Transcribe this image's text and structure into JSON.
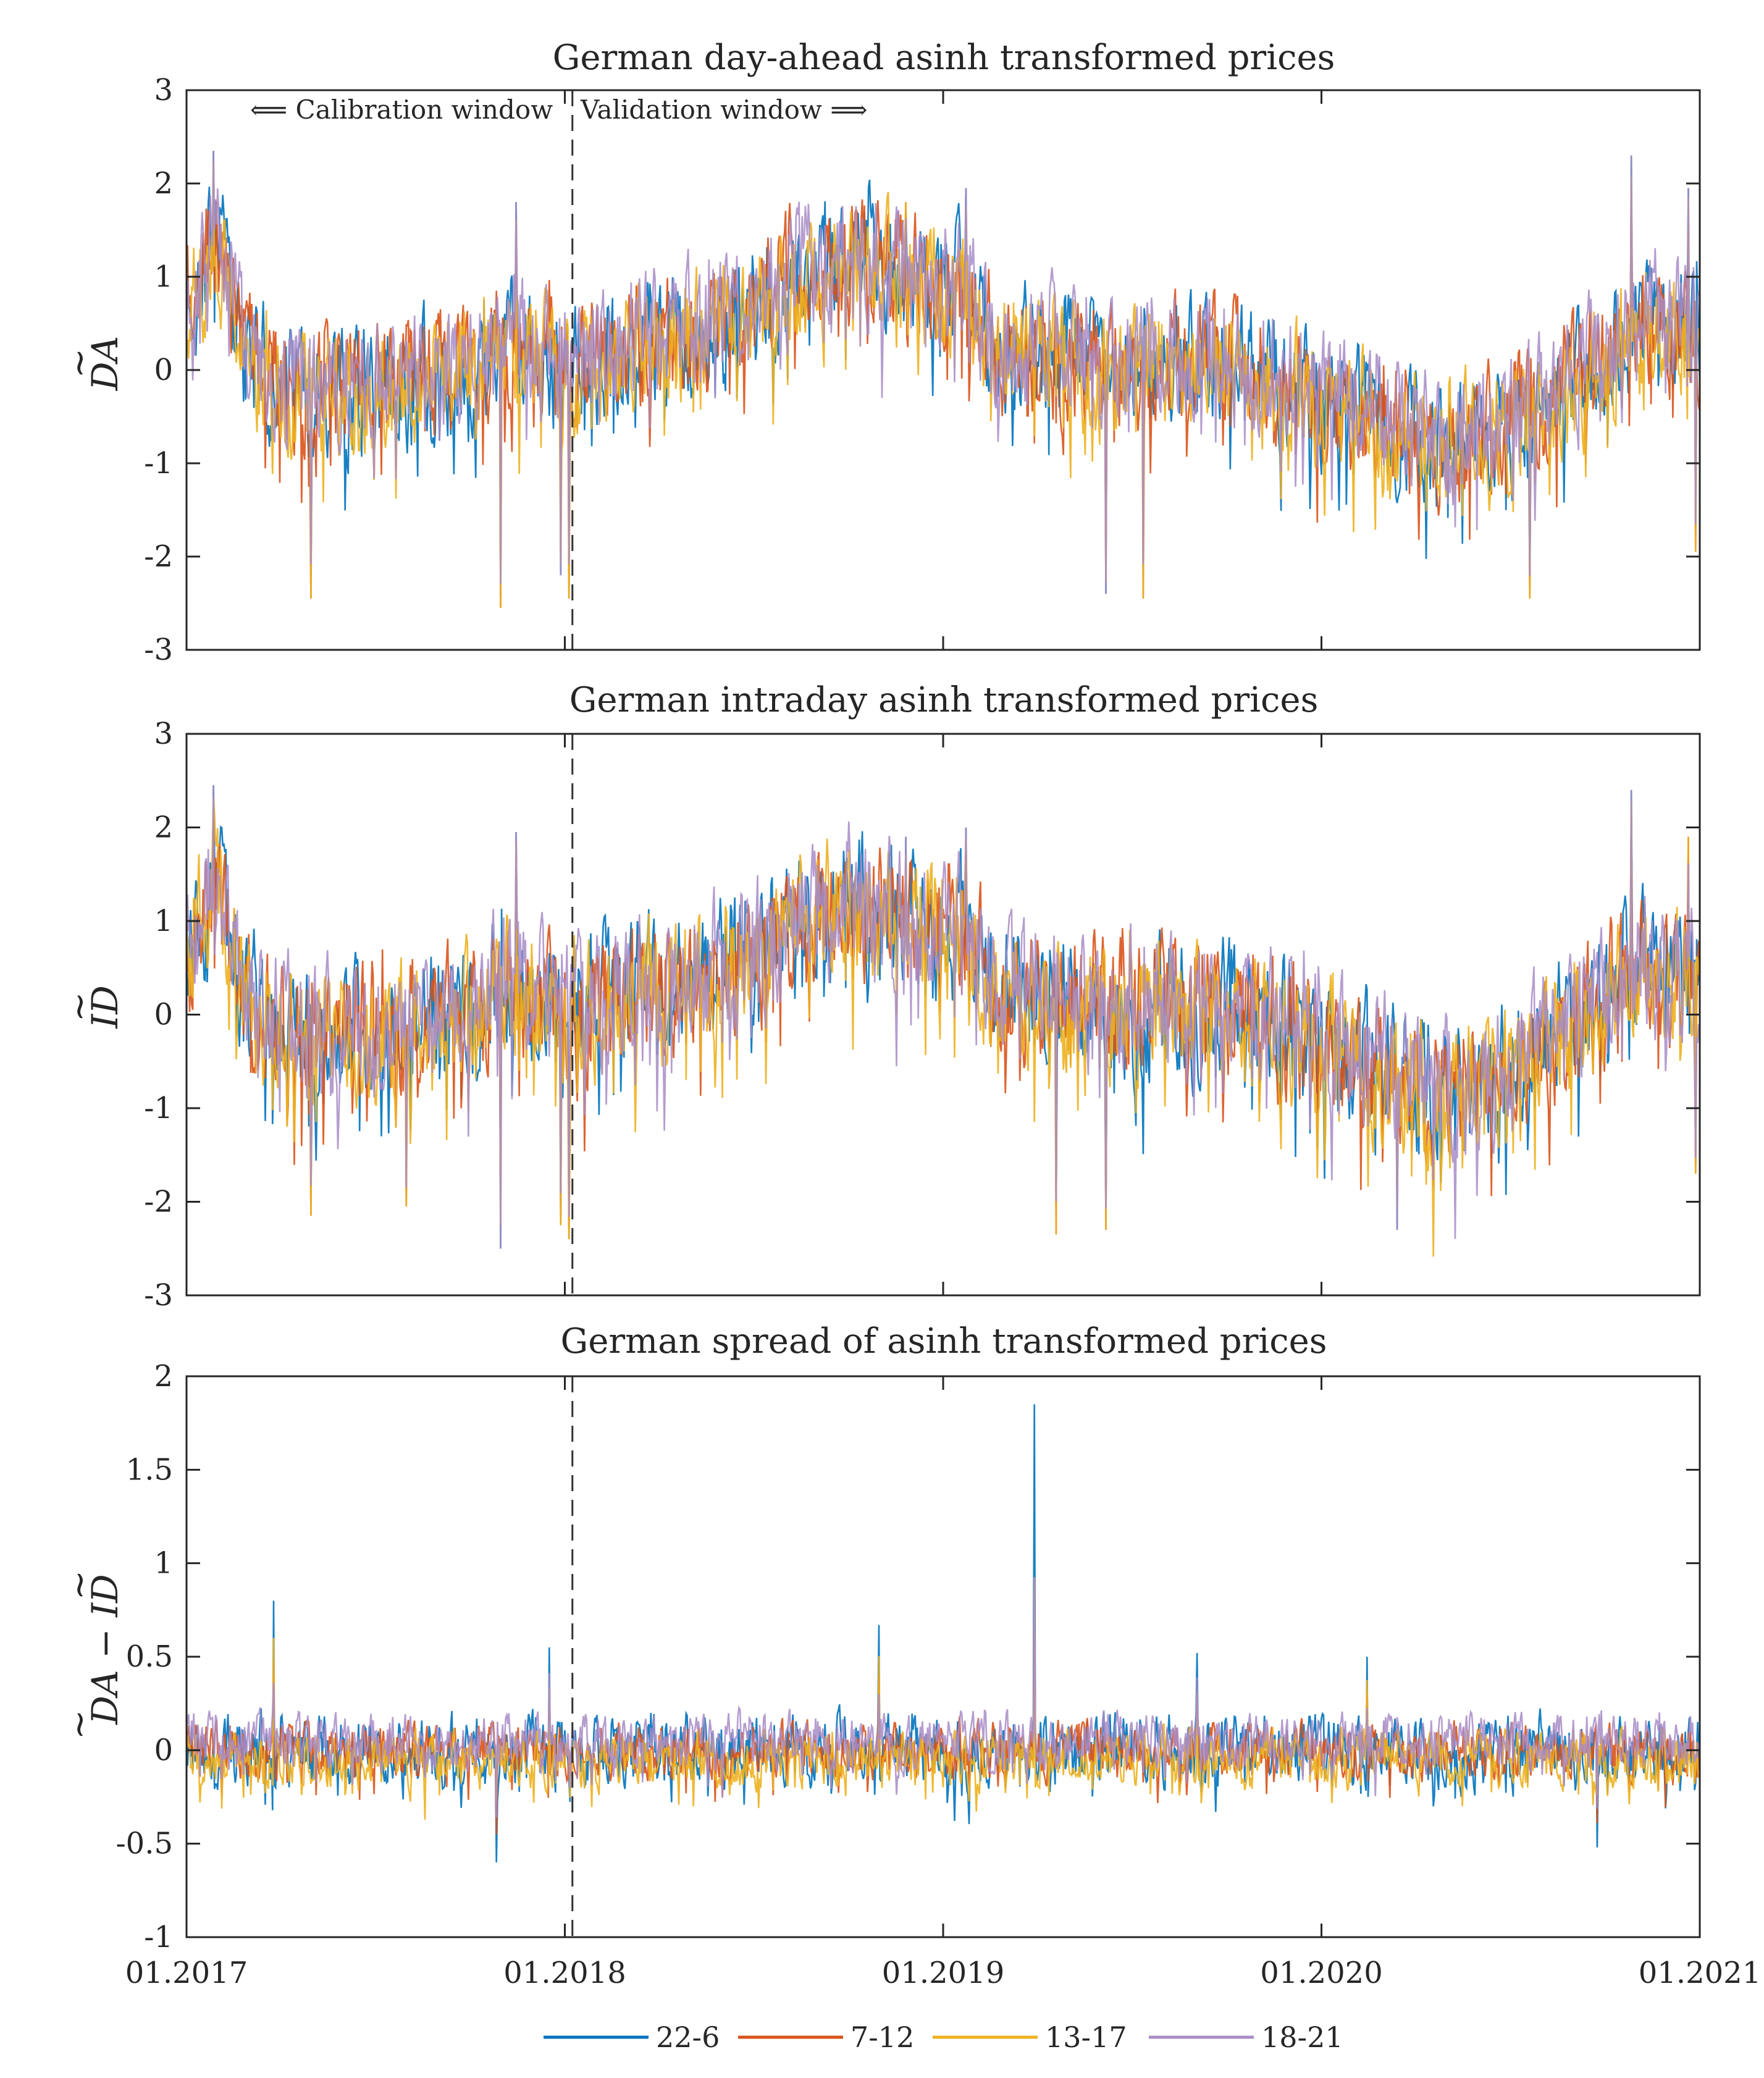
{
  "chart_data": [
    {
      "type": "line",
      "title": "German day-ahead asinh transformed prices",
      "ylabel": "DA~",
      "ylim": [
        -3,
        3
      ],
      "yticks": [
        3,
        2,
        1,
        0,
        -1,
        -2,
        -3
      ],
      "yticklabels": [
        "3",
        "2",
        "1",
        "0",
        "-1",
        "-2",
        "-3"
      ],
      "xlim": [
        2017,
        2021
      ],
      "split": 2018.02,
      "annotations": {
        "left": "⟸ Calibration window",
        "right": "Validation window ⟹"
      },
      "series_profile": {
        "knots": [
          [
            2017.0,
            0.6
          ],
          [
            2017.08,
            1.5
          ],
          [
            2017.15,
            0.2
          ],
          [
            2017.3,
            -0.3
          ],
          [
            2017.6,
            -0.1
          ],
          [
            2017.75,
            0.0
          ],
          [
            2017.85,
            0.4
          ],
          [
            2018.0,
            0.0
          ],
          [
            2018.2,
            0.3
          ],
          [
            2018.45,
            0.5
          ],
          [
            2018.6,
            1.0
          ],
          [
            2018.75,
            1.2
          ],
          [
            2018.9,
            1.0
          ],
          [
            2019.05,
            0.9
          ],
          [
            2019.15,
            0.2
          ],
          [
            2019.5,
            0.1
          ],
          [
            2019.75,
            0.05
          ],
          [
            2020.0,
            -0.3
          ],
          [
            2020.3,
            -0.85
          ],
          [
            2020.5,
            -0.6
          ],
          [
            2020.7,
            0.0
          ],
          [
            2020.85,
            0.5
          ],
          [
            2021.0,
            0.4
          ]
        ],
        "noise_amplitude": 0.55,
        "spikes": [
          [
            2017.07,
            2.35
          ],
          [
            2017.33,
            -2.45
          ],
          [
            2017.83,
            -2.55
          ],
          [
            2017.87,
            1.8
          ],
          [
            2017.99,
            -2.2
          ],
          [
            2018.01,
            -2.45
          ],
          [
            2018.9,
            1.8
          ],
          [
            2019.06,
            1.95
          ],
          [
            2019.43,
            -2.4
          ],
          [
            2019.53,
            -2.45
          ],
          [
            2020.55,
            -2.45
          ],
          [
            2020.82,
            2.3
          ],
          [
            2020.97,
            1.95
          ],
          [
            2020.99,
            -1.95
          ]
        ]
      },
      "series": [
        {
          "name": "22-6",
          "color": "#0072BD"
        },
        {
          "name": "7-12",
          "color": "#D95319"
        },
        {
          "name": "13-17",
          "color": "#EDB120"
        },
        {
          "name": "18-21",
          "color": "#A88CC7"
        }
      ]
    },
    {
      "type": "line",
      "title": "German intraday asinh transformed prices",
      "ylabel": "ID~",
      "ylim": [
        -3,
        3
      ],
      "yticks": [
        3,
        2,
        1,
        0,
        -1,
        -2,
        -3
      ],
      "yticklabels": [
        "3",
        "2",
        "1",
        "0",
        "-1",
        "-2",
        "-3"
      ],
      "xlim": [
        2017,
        2021
      ],
      "split": 2018.02,
      "series_profile": {
        "knots": [
          [
            2017.0,
            0.6
          ],
          [
            2017.08,
            1.5
          ],
          [
            2017.15,
            0.2
          ],
          [
            2017.3,
            -0.3
          ],
          [
            2017.6,
            -0.1
          ],
          [
            2017.75,
            0.0
          ],
          [
            2017.85,
            0.4
          ],
          [
            2018.0,
            0.0
          ],
          [
            2018.2,
            0.3
          ],
          [
            2018.45,
            0.5
          ],
          [
            2018.6,
            1.0
          ],
          [
            2018.75,
            1.2
          ],
          [
            2018.9,
            1.0
          ],
          [
            2019.05,
            0.9
          ],
          [
            2019.15,
            0.2
          ],
          [
            2019.5,
            0.1
          ],
          [
            2019.75,
            0.05
          ],
          [
            2020.0,
            -0.3
          ],
          [
            2020.3,
            -0.85
          ],
          [
            2020.5,
            -0.6
          ],
          [
            2020.7,
            0.0
          ],
          [
            2020.85,
            0.5
          ],
          [
            2021.0,
            0.4
          ]
        ],
        "noise_amplitude": 0.6,
        "spikes": [
          [
            2017.07,
            2.45
          ],
          [
            2017.33,
            -2.15
          ],
          [
            2017.58,
            -2.05
          ],
          [
            2017.83,
            -2.5
          ],
          [
            2017.87,
            1.95
          ],
          [
            2017.99,
            -2.25
          ],
          [
            2018.01,
            -2.4
          ],
          [
            2018.9,
            1.9
          ],
          [
            2019.06,
            2.0
          ],
          [
            2019.3,
            -2.35
          ],
          [
            2019.43,
            -2.3
          ],
          [
            2020.2,
            -2.3
          ],
          [
            2020.82,
            2.4
          ],
          [
            2020.97,
            1.9
          ],
          [
            2020.99,
            -1.7
          ]
        ]
      },
      "series": [
        {
          "name": "22-6",
          "color": "#0072BD"
        },
        {
          "name": "7-12",
          "color": "#D95319"
        },
        {
          "name": "13-17",
          "color": "#EDB120"
        },
        {
          "name": "18-21",
          "color": "#A88CC7"
        }
      ]
    },
    {
      "type": "line",
      "title": "German spread of asinh transformed prices",
      "ylabel": "DA~ − ID~",
      "ylim": [
        -1,
        2
      ],
      "yticks": [
        2,
        1.5,
        1,
        0.5,
        0,
        -0.5,
        -1
      ],
      "yticklabels": [
        "2",
        "1.5",
        "1",
        "0.5",
        "0",
        "-0.5",
        "-1"
      ],
      "xlim": [
        2017,
        2021
      ],
      "split": 2018.02,
      "xticks": [
        2017,
        2018,
        2019,
        2020,
        2021
      ],
      "xticklabels": [
        "01.2017",
        "01.2018",
        "01.2019",
        "01.2020",
        "01.2021"
      ],
      "series_profile": {
        "knots": [
          [
            2017.0,
            0.0
          ],
          [
            2021.0,
            0.0
          ]
        ],
        "noise_amplitude": 0.12,
        "spikes": [
          [
            2017.23,
            0.8
          ],
          [
            2017.82,
            -0.6
          ],
          [
            2017.96,
            0.55
          ],
          [
            2018.83,
            0.67
          ],
          [
            2019.24,
            1.85
          ],
          [
            2019.67,
            0.52
          ],
          [
            2020.12,
            0.5
          ],
          [
            2020.73,
            -0.52
          ]
        ]
      },
      "series": [
        {
          "name": "22-6",
          "color": "#0072BD"
        },
        {
          "name": "7-12",
          "color": "#D95319"
        },
        {
          "name": "13-17",
          "color": "#EDB120"
        },
        {
          "name": "18-21",
          "color": "#A88CC7"
        }
      ]
    }
  ],
  "legend": [
    {
      "label": "22-6",
      "color": "#0072BD"
    },
    {
      "label": "7-12",
      "color": "#D95319"
    },
    {
      "label": "13-17",
      "color": "#EDB120"
    },
    {
      "label": "18-21",
      "color": "#A88CC7"
    }
  ]
}
